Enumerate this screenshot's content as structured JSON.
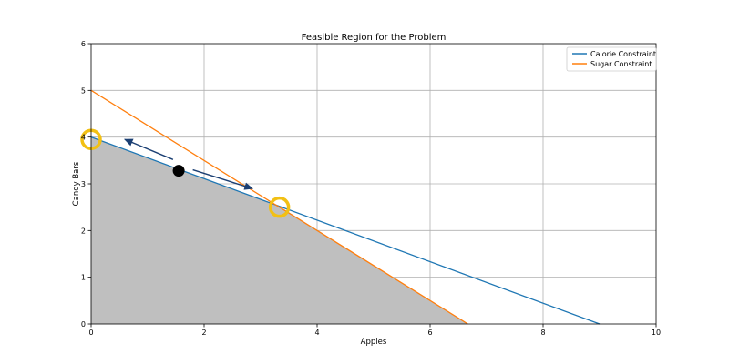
{
  "chart_data": {
    "type": "line",
    "title": "Feasible Region for the Problem",
    "xlabel": "Apples",
    "ylabel": "Candy Bars",
    "xlim": [
      0,
      10
    ],
    "ylim": [
      0,
      6
    ],
    "xticks": [
      0,
      2,
      4,
      6,
      8,
      10
    ],
    "yticks": [
      0,
      1,
      2,
      3,
      4,
      5,
      6
    ],
    "grid": true,
    "legend_position": "top-right",
    "series": [
      {
        "name": "Calorie Constraint",
        "color": "#1f77b4",
        "x": [
          0,
          9
        ],
        "y": [
          4,
          0
        ]
      },
      {
        "name": "Sugar Constraint",
        "color": "#ff7f0e",
        "x": [
          0,
          6.667
        ],
        "y": [
          5,
          0
        ]
      }
    ],
    "feasible_region": {
      "color": "#bfbfbf",
      "vertices": [
        [
          0,
          0
        ],
        [
          0,
          4
        ],
        [
          3.333,
          2.519
        ],
        [
          6.667,
          0
        ]
      ]
    },
    "annotations": {
      "highlight_circles": [
        {
          "x": 0,
          "y": 3.95,
          "color": "#f2c014"
        },
        {
          "x": 3.333,
          "y": 2.5,
          "color": "#f2c014"
        }
      ],
      "point": {
        "x": 1.55,
        "y": 3.28,
        "color": "#000000"
      },
      "arrows": [
        {
          "from": [
            1.45,
            3.52
          ],
          "to": [
            0.6,
            3.95
          ],
          "color": "#1b3f73"
        },
        {
          "from": [
            1.8,
            3.3
          ],
          "to": [
            2.85,
            2.9
          ],
          "color": "#1b3f73"
        }
      ]
    }
  }
}
